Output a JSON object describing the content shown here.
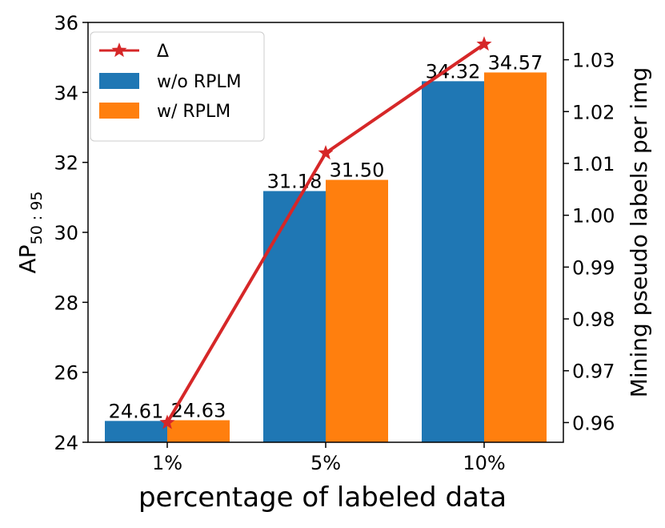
{
  "chart_data": {
    "type": "bar",
    "title": "",
    "xlabel": "percentage of labeled data",
    "ylabel": "AP",
    "ylabel_sub": "50 : 95",
    "y2label": "Mining pseudo labels per img",
    "categories": [
      "1%",
      "5%",
      "10%"
    ],
    "ylim": [
      24,
      36
    ],
    "yticks": [
      24,
      26,
      28,
      30,
      32,
      34,
      36
    ],
    "y2lim": [
      0.9562,
      1.0372
    ],
    "y2ticks": [
      "0.96",
      "0.97",
      "0.98",
      "0.99",
      "1.00",
      "1.01",
      "1.02",
      "1.03"
    ],
    "series": [
      {
        "name": "w/o RPLM",
        "kind": "bar",
        "axis": "left",
        "color": "#1f77b4",
        "values": [
          24.61,
          31.18,
          34.32
        ],
        "labels": [
          "24.61",
          "31.18",
          "34.32"
        ]
      },
      {
        "name": "w/ RPLM",
        "kind": "bar",
        "axis": "left",
        "color": "#ff7f0e",
        "values": [
          24.63,
          31.5,
          34.57
        ],
        "labels": [
          "24.63",
          "31.50",
          "34.57"
        ]
      },
      {
        "name": "Δ",
        "kind": "line",
        "axis": "right",
        "marker": "star",
        "color": "#d62728",
        "values": [
          0.96,
          1.012,
          1.033
        ]
      }
    ],
    "legend": {
      "position": "top-left",
      "entries": [
        "Δ",
        "w/o RPLM",
        "w/ RPLM"
      ]
    },
    "grid": false
  }
}
